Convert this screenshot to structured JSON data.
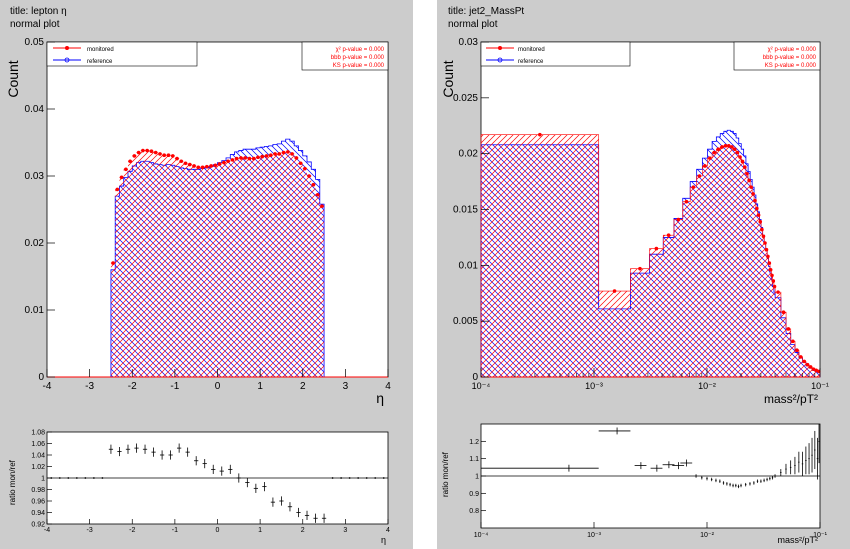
{
  "panels": [
    {
      "title_line": "title: lepton η",
      "subtitle_line": "normal plot",
      "main_ylabel": "Count",
      "main_xlabel": "η",
      "ratio_ylabel": "ratio mon/ref",
      "ratio_xlabel": "η",
      "legend": [
        "monitored",
        "reference"
      ],
      "stats": [
        "χ² p-value = 0.000",
        "bbb  p-value = 0.000",
        "KS  p-value = 0.000"
      ]
    },
    {
      "title_line": "title: jet2_MassPt",
      "subtitle_line": "normal plot",
      "main_ylabel": "Count",
      "main_xlabel": "mass²/pT²",
      "ratio_ylabel": "ratio mon/ref",
      "ratio_xlabel": "mass²/pT²",
      "legend": [
        "monitored",
        "reference"
      ],
      "stats": [
        "χ² p-value = 0.000",
        "bbb  p-value = 0.000",
        "KS  p-value = 0.000"
      ]
    }
  ],
  "colors": {
    "frame_bg": "#cccccc",
    "plot_bg": "#ffffff",
    "monitored": "#ff0000",
    "reference": "#0000ff",
    "ratio": "#000000",
    "stats_text": "#ff0000"
  },
  "chart_data": [
    {
      "type": "histogram",
      "title": "lepton η",
      "xlabel": "η",
      "ylabel": "Count",
      "xlim": [
        -4,
        4
      ],
      "ylim": [
        0,
        0.05
      ],
      "xticks": [
        -4,
        -3,
        -2,
        -1,
        0,
        1,
        2,
        3,
        4
      ],
      "yticks": [
        0,
        0.01,
        0.02,
        0.03,
        0.04,
        0.05
      ],
      "bin_edges": [
        -2.5,
        -2.4,
        -2.3,
        -2.2,
        -2.1,
        -2.0,
        -1.9,
        -1.8,
        -1.7,
        -1.6,
        -1.5,
        -1.4,
        -1.3,
        -1.2,
        -1.1,
        -1.0,
        -0.9,
        -0.8,
        -0.7,
        -0.6,
        -0.5,
        -0.4,
        -0.3,
        -0.2,
        -0.1,
        0.0,
        0.1,
        0.2,
        0.3,
        0.4,
        0.5,
        0.6,
        0.7,
        0.8,
        0.9,
        1.0,
        1.1,
        1.2,
        1.3,
        1.4,
        1.5,
        1.6,
        1.7,
        1.8,
        1.9,
        2.0,
        2.1,
        2.2,
        2.3,
        2.4,
        2.5
      ],
      "series": [
        {
          "name": "reference",
          "values": [
            0.016,
            0.027,
            0.0285,
            0.0298,
            0.0307,
            0.0315,
            0.032,
            0.0322,
            0.0322,
            0.032,
            0.0318,
            0.0317,
            0.0316,
            0.0317,
            0.0316,
            0.0314,
            0.0312,
            0.0311,
            0.031,
            0.031,
            0.031,
            0.0311,
            0.0312,
            0.0314,
            0.0317,
            0.032,
            0.0323,
            0.0327,
            0.0332,
            0.0336,
            0.0338,
            0.034,
            0.034,
            0.034,
            0.0342,
            0.0343,
            0.0344,
            0.0345,
            0.0347,
            0.0348,
            0.0352,
            0.0355,
            0.0352,
            0.0345,
            0.0338,
            0.033,
            0.0321,
            0.031,
            0.0295,
            0.0258
          ]
        },
        {
          "name": "monitored",
          "values": [
            0.017,
            0.028,
            0.0298,
            0.031,
            0.0322,
            0.033,
            0.0335,
            0.0338,
            0.0338,
            0.0337,
            0.0335,
            0.0333,
            0.0331,
            0.0331,
            0.033,
            0.0326,
            0.0322,
            0.0319,
            0.0317,
            0.0315,
            0.0313,
            0.0313,
            0.0314,
            0.0315,
            0.0316,
            0.0318,
            0.032,
            0.0322,
            0.0324,
            0.0326,
            0.0327,
            0.0327,
            0.0326,
            0.0326,
            0.0328,
            0.0329,
            0.033,
            0.0331,
            0.0333,
            0.0333,
            0.0335,
            0.0336,
            0.0333,
            0.0327,
            0.0319,
            0.0311,
            0.03,
            0.0287,
            0.0272,
            0.0255
          ]
        }
      ],
      "ratio": {
        "ylim": [
          0.92,
          1.08
        ],
        "yticks": [
          0.92,
          0.94,
          0.96,
          0.98,
          1,
          1.02,
          1.04,
          1.06,
          1.08
        ],
        "x": [
          -2.5,
          -2.3,
          -2.1,
          -1.9,
          -1.7,
          -1.5,
          -1.3,
          -1.1,
          -0.9,
          -0.7,
          -0.5,
          -0.3,
          -0.1,
          0.1,
          0.3,
          0.5,
          0.7,
          0.9,
          1.1,
          1.3,
          1.5,
          1.7,
          1.9,
          2.1,
          2.3,
          2.5
        ],
        "y": [
          1.05,
          1.046,
          1.05,
          1.052,
          1.05,
          1.045,
          1.04,
          1.04,
          1.052,
          1.045,
          1.03,
          1.025,
          1.015,
          1.012,
          1.015,
          1.0,
          0.992,
          0.982,
          0.985,
          0.958,
          0.96,
          0.95,
          0.94,
          0.935,
          0.93,
          0.93
        ],
        "err": 0.008
      }
    },
    {
      "type": "histogram",
      "title": "jet2_MassPt",
      "xlabel": "mass²/pT²",
      "ylabel": "Count",
      "xscale": "log",
      "xlim": [
        0.0001,
        0.1
      ],
      "ylim": [
        0,
        0.03
      ],
      "xticks": [
        0.0001,
        0.001,
        0.01,
        0.1
      ],
      "xtick_labels": [
        "10⁻⁴",
        "10⁻³",
        "10⁻²",
        "10⁻¹"
      ],
      "yticks": [
        0,
        0.005,
        0.01,
        0.015,
        0.02,
        0.025,
        0.03
      ],
      "first_bins": [
        {
          "lo": 0.0001,
          "hi": 0.0011,
          "reference": 0.0208,
          "monitored": 0.0217
        },
        {
          "lo": 0.0011,
          "hi": 0.0021,
          "reference": 0.0061,
          "monitored": 0.0077
        }
      ],
      "curve_x": [
        0.0021,
        0.0031,
        0.0041,
        0.0051,
        0.0061,
        0.0071,
        0.0081,
        0.0091,
        0.0101,
        0.0111,
        0.0121,
        0.0131,
        0.0141,
        0.0151,
        0.0161,
        0.0171,
        0.0181,
        0.0191,
        0.0201,
        0.0211,
        0.0221,
        0.0231,
        0.0241,
        0.0251,
        0.0261,
        0.0271,
        0.0281,
        0.0291,
        0.0301,
        0.0311,
        0.0321,
        0.0331,
        0.0341,
        0.0351,
        0.0361,
        0.0371,
        0.0381,
        0.0391,
        0.0401,
        0.0451,
        0.0501,
        0.0551,
        0.0601,
        0.0651,
        0.0701,
        0.0751,
        0.0801,
        0.0851,
        0.0901,
        0.0951,
        0.1
      ],
      "series": [
        {
          "name": "reference",
          "values": [
            0.0093,
            0.011,
            0.0125,
            0.0142,
            0.016,
            0.0175,
            0.0186,
            0.0196,
            0.0204,
            0.0211,
            0.0215,
            0.0218,
            0.022,
            0.0221,
            0.022,
            0.0218,
            0.0214,
            0.0209,
            0.0204,
            0.0198,
            0.0191,
            0.0184,
            0.0177,
            0.017,
            0.0163,
            0.0155,
            0.0148,
            0.0141,
            0.0134,
            0.0127,
            0.012,
            0.0113,
            0.0106,
            0.0099,
            0.0093,
            0.0087,
            0.0081,
            0.0076,
            0.0071,
            0.0053,
            0.0039,
            0.0029,
            0.0022,
            0.0017,
            0.0013,
            0.001,
            0.0008,
            0.0006,
            0.0005,
            0.0004,
            0.0003
          ]
        },
        {
          "name": "monitored",
          "values": [
            0.0097,
            0.0115,
            0.0127,
            0.0141,
            0.0157,
            0.017,
            0.018,
            0.0189,
            0.0196,
            0.0201,
            0.0204,
            0.0206,
            0.0207,
            0.0207,
            0.0206,
            0.0204,
            0.0201,
            0.0197,
            0.0193,
            0.0188,
            0.0182,
            0.0176,
            0.017,
            0.0164,
            0.0158,
            0.0151,
            0.0145,
            0.0139,
            0.0132,
            0.0126,
            0.012,
            0.0114,
            0.0108,
            0.0102,
            0.0096,
            0.0091,
            0.0086,
            0.0081,
            0.0076,
            0.0058,
            0.0043,
            0.0032,
            0.0024,
            0.0018,
            0.0014,
            0.0011,
            0.0009,
            0.0007,
            0.0006,
            0.0005,
            0.0004
          ]
        }
      ],
      "ratio": {
        "ylim": [
          0.7,
          1.3
        ],
        "yticks": [
          0.8,
          0.9,
          1,
          1.1,
          1.2
        ],
        "points": [
          {
            "x": 0.0006,
            "y": 1.045,
            "xerr": [
              0.0001,
              0.0011
            ]
          },
          {
            "x": 0.0016,
            "y": 1.26,
            "xerr": [
              0.0011,
              0.0021
            ]
          },
          {
            "x": 0.0026,
            "y": 1.06
          },
          {
            "x": 0.0036,
            "y": 1.045
          },
          {
            "x": 0.0046,
            "y": 1.065
          },
          {
            "x": 0.0056,
            "y": 1.06
          },
          {
            "x": 0.0066,
            "y": 1.075
          }
        ],
        "tail_x": [
          0.008,
          0.009,
          0.01,
          0.011,
          0.012,
          0.013,
          0.014,
          0.015,
          0.016,
          0.017,
          0.018,
          0.019,
          0.02,
          0.022,
          0.024,
          0.026,
          0.028,
          0.03,
          0.032,
          0.034,
          0.036,
          0.038,
          0.04,
          0.045,
          0.05,
          0.055,
          0.06,
          0.065,
          0.07,
          0.075,
          0.08,
          0.085,
          0.09,
          0.095,
          0.098
        ],
        "tail_y": [
          1.0,
          0.99,
          0.985,
          0.98,
          0.975,
          0.97,
          0.96,
          0.955,
          0.95,
          0.945,
          0.945,
          0.94,
          0.945,
          0.95,
          0.955,
          0.96,
          0.97,
          0.97,
          0.975,
          0.98,
          0.985,
          0.99,
          1.0,
          1.02,
          1.04,
          1.05,
          1.06,
          1.08,
          1.07,
          1.09,
          1.1,
          1.12,
          1.15,
          1.1,
          1.2
        ]
      }
    }
  ]
}
